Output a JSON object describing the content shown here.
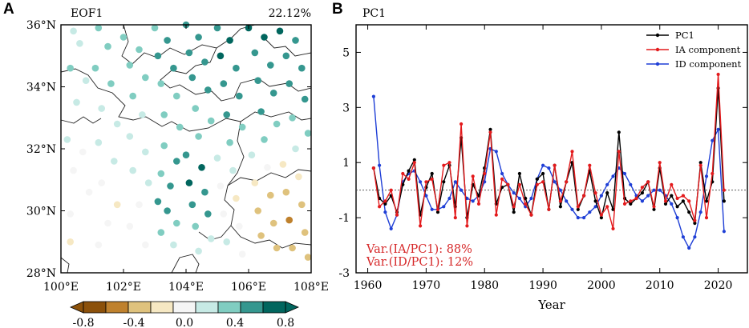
{
  "chart_data": [
    {
      "type": "scatter",
      "panel_label": "A",
      "title": "EOF1",
      "variance_label": "22.12%",
      "x_tick_labels": [
        "100°E",
        "102°E",
        "104°E",
        "106°E",
        "108°E"
      ],
      "y_tick_labels": [
        "28°N",
        "30°N",
        "32°N",
        "34°N",
        "36°N"
      ],
      "xlim": [
        100,
        108
      ],
      "ylim": [
        28,
        36
      ],
      "colorbar": {
        "tick_labels": [
          "-0.8",
          "-0.4",
          "0.0",
          "0.4",
          "0.8"
        ],
        "bounds": [
          -0.8,
          -0.6,
          -0.4,
          -0.2,
          0.0,
          0.2,
          0.4,
          0.6,
          0.8
        ],
        "colors": [
          "#8c510a",
          "#bf812d",
          "#dfc27d",
          "#f6e8c3",
          "#f5f5f5",
          "#c7eae5",
          "#80cdc1",
          "#35978f",
          "#01665e"
        ],
        "extend": "both"
      },
      "stations": [
        [
          100.4,
          35.8,
          0.35
        ],
        [
          100.6,
          35.4,
          0.35
        ],
        [
          100.3,
          34.6,
          0.4
        ],
        [
          100.8,
          34.2,
          0.35
        ],
        [
          100.5,
          33.5,
          0.3
        ],
        [
          100.2,
          32.3,
          0.2
        ],
        [
          100.7,
          31.9,
          0.1
        ],
        [
          100.4,
          31.3,
          0.0
        ],
        [
          100.9,
          30.6,
          0.05
        ],
        [
          100.3,
          29.9,
          0.05
        ],
        [
          101.2,
          35.9,
          0.4
        ],
        [
          101.5,
          35.3,
          0.45
        ],
        [
          101.1,
          34.6,
          0.4
        ],
        [
          101.6,
          34.1,
          0.4
        ],
        [
          101.3,
          33.3,
          0.35
        ],
        [
          101.8,
          32.8,
          0.35
        ],
        [
          101.2,
          32.2,
          0.3
        ],
        [
          101.7,
          31.6,
          0.2
        ],
        [
          101.3,
          30.9,
          0.1
        ],
        [
          101.8,
          30.2,
          -0.1
        ],
        [
          101.5,
          29.6,
          0.05
        ],
        [
          101.2,
          28.9,
          0.0
        ],
        [
          100.3,
          29.0,
          -0.1
        ],
        [
          102.0,
          35.6,
          0.45
        ],
        [
          102.5,
          35.2,
          0.5
        ],
        [
          102.2,
          34.7,
          0.5
        ],
        [
          102.7,
          34.3,
          0.45
        ],
        [
          102.3,
          33.7,
          0.4
        ],
        [
          102.6,
          33.1,
          0.35
        ],
        [
          102.2,
          32.4,
          0.35
        ],
        [
          102.7,
          31.9,
          0.3
        ],
        [
          102.3,
          31.3,
          0.25
        ],
        [
          102.8,
          30.9,
          0.3
        ],
        [
          102.5,
          30.2,
          0.0
        ],
        [
          102.2,
          29.5,
          0.1
        ],
        [
          102.7,
          28.9,
          0.05
        ],
        [
          103.0,
          35.9,
          0.55
        ],
        [
          103.4,
          35.5,
          0.6
        ],
        [
          103.1,
          35.0,
          0.65
        ],
        [
          103.6,
          34.6,
          0.65
        ],
        [
          103.2,
          34.1,
          0.55
        ],
        [
          103.7,
          33.7,
          0.5
        ],
        [
          103.3,
          33.1,
          0.45
        ],
        [
          103.8,
          32.7,
          0.45
        ],
        [
          103.3,
          32.1,
          0.45
        ],
        [
          103.7,
          31.6,
          0.6
        ],
        [
          103.2,
          31.2,
          0.55
        ],
        [
          103.5,
          30.8,
          0.75
        ],
        [
          103.1,
          30.3,
          0.7
        ],
        [
          103.4,
          30.0,
          0.65
        ],
        [
          103.7,
          29.6,
          0.55
        ],
        [
          103.2,
          29.3,
          0.4
        ],
        [
          103.6,
          28.9,
          0.2
        ],
        [
          104.0,
          36.0,
          0.7
        ],
        [
          104.4,
          35.6,
          0.75
        ],
        [
          104.1,
          35.1,
          0.7
        ],
        [
          104.6,
          34.8,
          0.7
        ],
        [
          104.2,
          34.3,
          0.65
        ],
        [
          104.7,
          33.9,
          0.6
        ],
        [
          104.3,
          33.3,
          0.55
        ],
        [
          104.8,
          32.9,
          0.55
        ],
        [
          104.4,
          32.4,
          0.5
        ],
        [
          104.0,
          31.8,
          0.75
        ],
        [
          104.5,
          31.4,
          0.8
        ],
        [
          104.1,
          30.9,
          0.8
        ],
        [
          104.6,
          30.6,
          0.75
        ],
        [
          104.2,
          30.2,
          0.7
        ],
        [
          104.7,
          29.9,
          0.6
        ],
        [
          104.3,
          29.5,
          0.5
        ],
        [
          104.8,
          29.1,
          0.3
        ],
        [
          104.4,
          28.7,
          0.2
        ],
        [
          105.0,
          35.9,
          0.75
        ],
        [
          105.4,
          35.5,
          0.8
        ],
        [
          105.1,
          35.0,
          0.8
        ],
        [
          105.6,
          34.6,
          0.75
        ],
        [
          105.2,
          34.1,
          0.7
        ],
        [
          105.7,
          33.7,
          0.65
        ],
        [
          105.3,
          33.1,
          0.6
        ],
        [
          105.8,
          32.7,
          0.55
        ],
        [
          105.4,
          32.2,
          0.45
        ],
        [
          105.0,
          31.7,
          0.35
        ],
        [
          105.5,
          31.3,
          0.2
        ],
        [
          105.1,
          30.8,
          0.1
        ],
        [
          105.6,
          30.4,
          -0.1
        ],
        [
          105.2,
          29.9,
          0.0
        ],
        [
          105.7,
          29.5,
          0.1
        ],
        [
          105.3,
          29.0,
          0.2
        ],
        [
          105.8,
          28.6,
          0.1
        ],
        [
          106.0,
          35.9,
          0.8
        ],
        [
          106.5,
          35.6,
          0.8
        ],
        [
          106.2,
          35.1,
          0.75
        ],
        [
          106.7,
          34.7,
          0.75
        ],
        [
          106.3,
          34.2,
          0.7
        ],
        [
          106.8,
          33.8,
          0.65
        ],
        [
          106.4,
          33.2,
          0.6
        ],
        [
          106.9,
          32.8,
          0.55
        ],
        [
          106.5,
          32.3,
          0.4
        ],
        [
          106.1,
          31.8,
          0.2
        ],
        [
          106.6,
          31.4,
          0.1
        ],
        [
          106.2,
          30.9,
          -0.2
        ],
        [
          106.7,
          30.5,
          -0.3
        ],
        [
          106.3,
          30.0,
          -0.35
        ],
        [
          106.8,
          29.6,
          -0.4
        ],
        [
          106.4,
          29.2,
          -0.3
        ],
        [
          106.9,
          28.8,
          -0.35
        ],
        [
          107.0,
          35.8,
          0.8
        ],
        [
          107.5,
          35.5,
          0.75
        ],
        [
          107.2,
          35.0,
          0.75
        ],
        [
          107.7,
          34.6,
          0.7
        ],
        [
          107.3,
          34.1,
          0.65
        ],
        [
          107.8,
          33.6,
          0.6
        ],
        [
          107.4,
          33.0,
          0.5
        ],
        [
          107.9,
          32.5,
          0.4
        ],
        [
          107.5,
          32.0,
          0.2
        ],
        [
          107.1,
          31.5,
          -0.1
        ],
        [
          107.6,
          31.1,
          -0.2
        ],
        [
          107.2,
          30.6,
          -0.3
        ],
        [
          107.7,
          30.2,
          -0.4
        ],
        [
          107.3,
          29.7,
          -0.45
        ],
        [
          107.8,
          29.3,
          -0.4
        ],
        [
          107.4,
          28.8,
          -0.35
        ],
        [
          107.9,
          28.5,
          -0.3
        ]
      ]
    },
    {
      "type": "line",
      "panel_label": "B",
      "title": "PC1",
      "xlabel": "Year",
      "xlim": [
        1958,
        2025
      ],
      "ylim": [
        -3,
        6
      ],
      "x_ticks": [
        1960,
        1970,
        1980,
        1990,
        2000,
        2010,
        2020
      ],
      "x_tick_labels": [
        "1960",
        "1970",
        "1980",
        "1990",
        "2000",
        "2010",
        "2020"
      ],
      "y_ticks": [
        -3,
        -1,
        1,
        3,
        5
      ],
      "y_tick_labels": [
        "-3",
        "-1",
        "1",
        "3",
        "5"
      ],
      "reference_line": 0,
      "legend_location": "top-right",
      "annotations": [
        "Var.(IA/PC1): 88%",
        "Var.(ID/PC1): 12%"
      ],
      "annotation_color": "#d62728",
      "x": [
        1961,
        1962,
        1963,
        1964,
        1965,
        1966,
        1967,
        1968,
        1969,
        1970,
        1971,
        1972,
        1973,
        1974,
        1975,
        1976,
        1977,
        1978,
        1979,
        1980,
        1981,
        1982,
        1983,
        1984,
        1985,
        1986,
        1987,
        1988,
        1989,
        1990,
        1991,
        1992,
        1993,
        1994,
        1995,
        1996,
        1997,
        1998,
        1999,
        2000,
        2001,
        2002,
        2003,
        2004,
        2005,
        2006,
        2007,
        2008,
        2009,
        2010,
        2011,
        2012,
        2013,
        2014,
        2015,
        2016,
        2017,
        2018,
        2019,
        2020,
        2021
      ],
      "series": [
        {
          "name": "PC1",
          "color": "#000000",
          "values": [
            0.8,
            -0.3,
            -0.5,
            -0.2,
            -0.8,
            0.2,
            0.7,
            1.1,
            -0.9,
            0.1,
            0.6,
            -0.8,
            0.3,
            0.9,
            -0.6,
            1.9,
            -1.0,
            0.2,
            -0.2,
            0.8,
            2.2,
            -0.5,
            0.1,
            0.2,
            -0.8,
            0.6,
            -0.3,
            -0.9,
            0.4,
            0.6,
            -0.7,
            0.9,
            -0.6,
            0.3,
            1.0,
            -0.7,
            -0.2,
            0.7,
            -0.4,
            -1.0,
            -0.1,
            -0.7,
            2.1,
            -0.3,
            -0.5,
            -0.3,
            -0.1,
            0.3,
            -0.7,
            0.8,
            -0.5,
            -0.2,
            -0.6,
            -0.4,
            -0.8,
            -1.2,
            1.0,
            -0.4,
            0.3,
            3.7,
            -0.4
          ]
        },
        {
          "name": "IA component",
          "color": "#e31a1c",
          "values": [
            0.8,
            -0.6,
            -0.4,
            0.0,
            -0.9,
            0.6,
            0.4,
            1.0,
            -1.3,
            0.3,
            0.4,
            -0.7,
            0.9,
            1.0,
            -1.0,
            2.4,
            -1.3,
            0.5,
            -0.5,
            0.6,
            2.1,
            -0.9,
            0.4,
            0.2,
            -0.6,
            0.2,
            -0.5,
            -0.9,
            0.2,
            0.3,
            -0.7,
            0.9,
            -0.4,
            0.3,
            1.4,
            -0.6,
            -0.2,
            0.9,
            -0.1,
            -0.9,
            -0.6,
            -1.4,
            1.4,
            -0.5,
            -0.4,
            -0.3,
            0.1,
            0.3,
            -0.6,
            1.0,
            -0.4,
            0.2,
            -0.3,
            -0.2,
            -0.4,
            -1.1,
            0.9,
            -1.0,
            0.6,
            4.2,
            0.0
          ]
        },
        {
          "name": "ID component",
          "color": "#1f3fd6",
          "values": [
            3.4,
            0.9,
            -0.8,
            -1.4,
            -0.9,
            0.3,
            0.6,
            0.7,
            0.3,
            -0.2,
            -0.7,
            -0.7,
            -0.6,
            -0.3,
            0.3,
            0.0,
            -0.3,
            -0.4,
            -0.2,
            0.3,
            1.5,
            1.4,
            0.6,
            0.2,
            -0.1,
            -0.3,
            -0.6,
            -0.3,
            0.4,
            0.9,
            0.8,
            0.3,
            0.0,
            -0.4,
            -0.7,
            -1.0,
            -1.0,
            -0.8,
            -0.6,
            -0.2,
            0.2,
            0.5,
            0.8,
            0.6,
            0.2,
            -0.2,
            -0.4,
            -0.2,
            0.0,
            0.0,
            -0.2,
            -0.5,
            -1.0,
            -1.7,
            -2.1,
            -1.7,
            -0.8,
            0.5,
            1.8,
            2.2,
            -1.5
          ]
        }
      ]
    }
  ]
}
